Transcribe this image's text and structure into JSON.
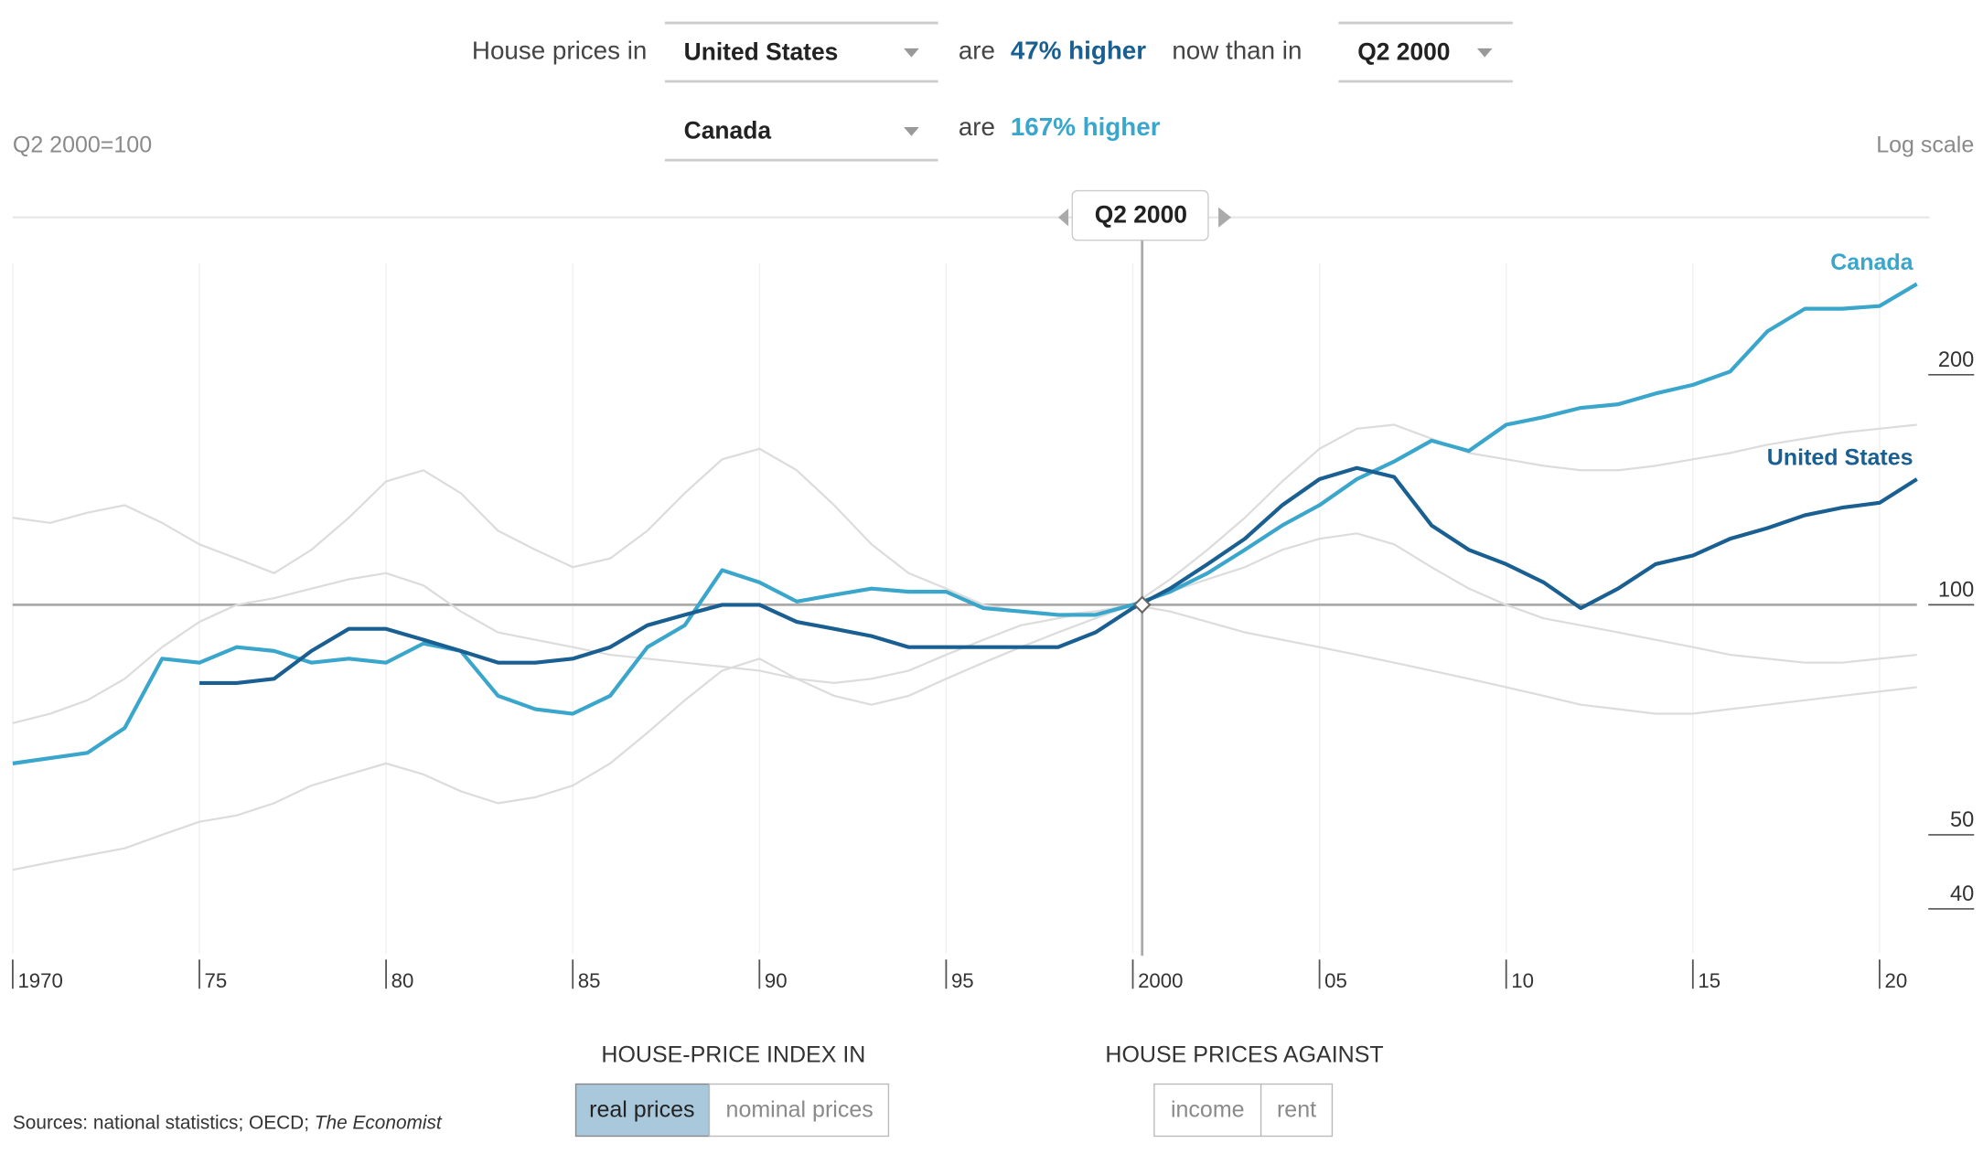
{
  "controls": {
    "intro": "House prices in",
    "country_1": "United States",
    "are_1": "are",
    "change_1": "47% higher",
    "now_than_in": "now than in",
    "period": "Q2 2000",
    "country_2": "Canada",
    "are_2": "are",
    "change_2": "167% higher",
    "index_heading": "HOUSE-PRICE INDEX IN",
    "index_options": [
      "real prices",
      "nominal prices"
    ],
    "against_heading": "HOUSE PRICES AGAINST",
    "against_options": [
      "income",
      "rent"
    ],
    "sources": [
      "Sources: national statistics; OECD; ",
      "The Economist"
    ]
  },
  "chart_data": {
    "type": "line",
    "subtitle": "Q2 2000=100",
    "scale_label": "Log scale",
    "log_scale": true,
    "grid": true,
    "cursor": {
      "label": "Q2 2000",
      "x": 2000.25
    },
    "x": [
      1970,
      1971,
      1972,
      1973,
      1974,
      1975,
      1976,
      1977,
      1978,
      1979,
      1980,
      1981,
      1982,
      1983,
      1984,
      1985,
      1986,
      1987,
      1988,
      1989,
      1990,
      1991,
      1992,
      1993,
      1994,
      1995,
      1996,
      1997,
      1998,
      1999,
      2000,
      2001,
      2002,
      2003,
      2004,
      2005,
      2006,
      2007,
      2008,
      2009,
      2010,
      2011,
      2012,
      2013,
      2014,
      2015,
      2016,
      2017,
      2018,
      2019,
      2020,
      2021
    ],
    "xlim": [
      1970,
      2021
    ],
    "xticks": [
      1970,
      {
        "value": 1975,
        "label": "75"
      },
      {
        "value": 1980,
        "label": "80"
      },
      {
        "value": 1985,
        "label": "85"
      },
      {
        "value": 1990,
        "label": "90"
      },
      {
        "value": 1995,
        "label": "95"
      },
      2000,
      {
        "value": 2005,
        "label": "05"
      },
      {
        "value": 2010,
        "label": "10"
      },
      {
        "value": 2015,
        "label": "15"
      },
      {
        "value": 2020,
        "label": "20"
      }
    ],
    "ylim": [
      35,
      280
    ],
    "yticks": [
      40,
      50,
      100,
      200
    ],
    "series": [
      {
        "color": "#dcdcdc",
        "values": [
          130,
          128,
          132,
          135,
          128,
          120,
          115,
          110,
          118,
          130,
          145,
          150,
          140,
          125,
          118,
          112,
          115,
          125,
          140,
          155,
          160,
          150,
          135,
          120,
          110,
          105,
          100,
          98,
          97,
          98,
          100,
          108,
          118,
          130,
          145,
          160,
          170,
          172,
          165,
          158,
          155,
          152,
          150,
          150,
          152,
          155,
          158,
          162,
          165,
          168,
          170,
          172
        ]
      },
      {
        "color": "#dcdcdc",
        "values": [
          45,
          46,
          47,
          48,
          50,
          52,
          53,
          55,
          58,
          60,
          62,
          60,
          57,
          55,
          56,
          58,
          62,
          68,
          75,
          82,
          85,
          80,
          76,
          74,
          76,
          80,
          84,
          88,
          92,
          96,
          100,
          104,
          108,
          112,
          118,
          122,
          124,
          120,
          112,
          105,
          100,
          96,
          94,
          92,
          90,
          88,
          86,
          85,
          84,
          84,
          85,
          86
        ]
      },
      {
        "color": "#dcdcdc",
        "values": [
          70,
          72,
          75,
          80,
          88,
          95,
          100,
          102,
          105,
          108,
          110,
          106,
          98,
          92,
          90,
          88,
          86,
          85,
          84,
          83,
          82,
          80,
          79,
          80,
          82,
          86,
          90,
          94,
          96,
          98,
          100,
          98,
          95,
          92,
          90,
          88,
          86,
          84,
          82,
          80,
          78,
          76,
          74,
          73,
          72,
          72,
          73,
          74,
          75,
          76,
          77,
          78
        ]
      },
      {
        "name": "Canada",
        "color": "#3aa6cc",
        "values": [
          62,
          63,
          64,
          69,
          85,
          84,
          88,
          87,
          84,
          85,
          84,
          89,
          87,
          76,
          73,
          72,
          76,
          88,
          94,
          111,
          107,
          101,
          103,
          105,
          104,
          104,
          99,
          98,
          97,
          97,
          100,
          104,
          110,
          118,
          127,
          135,
          146,
          154,
          164,
          159,
          172,
          176,
          181,
          183,
          189,
          194,
          202,
          228,
          244,
          244,
          246,
          263
        ]
      },
      {
        "name": "United States",
        "color": "#1a5f91",
        "values": [
          null,
          null,
          null,
          null,
          null,
          79,
          79,
          80,
          87,
          93,
          93,
          90,
          87,
          84,
          84,
          85,
          88,
          94,
          97,
          100,
          100,
          95,
          93,
          91,
          88,
          88,
          88,
          88,
          88,
          92,
          99,
          105,
          113,
          122,
          135,
          146,
          151,
          147,
          127,
          118,
          113,
          107,
          99,
          105,
          113,
          116,
          122,
          126,
          131,
          134,
          136,
          146
        ]
      }
    ]
  }
}
